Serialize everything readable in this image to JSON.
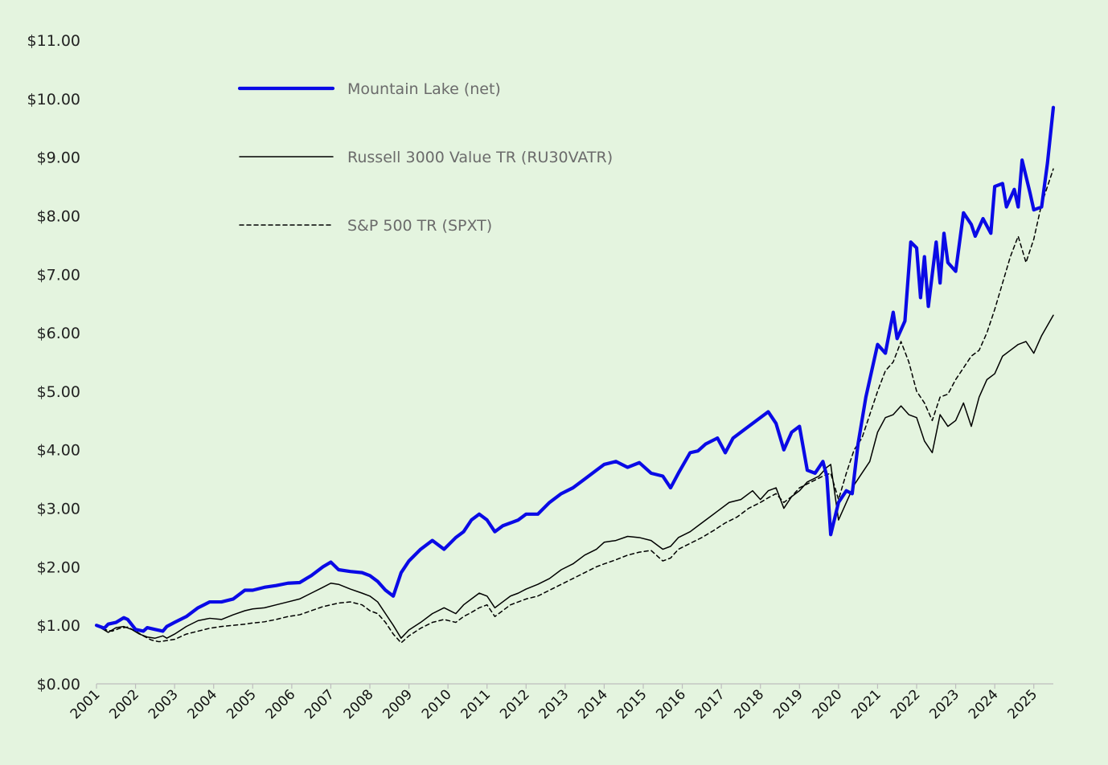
{
  "chart_data": {
    "type": "line",
    "title": "",
    "xlabel": "",
    "ylabel": "",
    "xlim": [
      2001.0,
      2025.5
    ],
    "ylim": [
      0,
      11
    ],
    "yticks": [
      0,
      1,
      2,
      3,
      4,
      5,
      6,
      7,
      8,
      9,
      10,
      11
    ],
    "ytick_labels": [
      "$0.00",
      "$1.00",
      "$2.00",
      "$3.00",
      "$4.00",
      "$5.00",
      "$6.00",
      "$7.00",
      "$8.00",
      "$9.00",
      "$10.00",
      "$11.00"
    ],
    "xticks": [
      2001,
      2002,
      2003,
      2004,
      2005,
      2006,
      2007,
      2008,
      2009,
      2010,
      2011,
      2012,
      2013,
      2014,
      2015,
      2016,
      2017,
      2018,
      2019,
      2020,
      2021,
      2022,
      2023,
      2024,
      2025
    ],
    "xtick_labels": [
      "2001",
      "2002",
      "2003",
      "2004",
      "2005",
      "2006",
      "2007",
      "2008",
      "2009",
      "2010",
      "2011",
      "2012",
      "2013",
      "2014",
      "2015",
      "2016",
      "2017",
      "2018",
      "2019",
      "2020",
      "2021",
      "2022",
      "2023",
      "2024",
      "2025"
    ],
    "grid": false,
    "legend_position": "top-left",
    "series": [
      {
        "name": "Mountain Lake (net)",
        "color": "#0a0ae6",
        "style": "solid-thick",
        "x": [
          2001.0,
          2001.2,
          2001.3,
          2001.5,
          2001.7,
          2001.8,
          2002.0,
          2002.2,
          2002.3,
          2002.5,
          2002.7,
          2002.8,
          2003.0,
          2003.3,
          2003.6,
          2003.9,
          2004.2,
          2004.5,
          2004.8,
          2005.0,
          2005.3,
          2005.6,
          2005.9,
          2006.2,
          2006.5,
          2006.8,
          2007.0,
          2007.2,
          2007.5,
          2007.8,
          2008.0,
          2008.2,
          2008.4,
          2008.6,
          2008.8,
          2009.0,
          2009.3,
          2009.6,
          2009.9,
          2010.2,
          2010.4,
          2010.6,
          2010.8,
          2011.0,
          2011.2,
          2011.4,
          2011.6,
          2011.8,
          2012.0,
          2012.3,
          2012.6,
          2012.9,
          2013.2,
          2013.5,
          2013.8,
          2014.0,
          2014.3,
          2014.6,
          2014.9,
          2015.2,
          2015.5,
          2015.7,
          2015.9,
          2016.2,
          2016.4,
          2016.6,
          2016.9,
          2017.1,
          2017.3,
          2017.6,
          2017.8,
          2018.0,
          2018.2,
          2018.4,
          2018.6,
          2018.8,
          2019.0,
          2019.2,
          2019.4,
          2019.6,
          2019.7,
          2019.8,
          2020.0,
          2020.2,
          2020.35,
          2020.5,
          2020.7,
          2020.85,
          2021.0,
          2021.2,
          2021.4,
          2021.5,
          2021.7,
          2021.85,
          2022.0,
          2022.1,
          2022.2,
          2022.3,
          2022.5,
          2022.6,
          2022.7,
          2022.8,
          2023.0,
          2023.2,
          2023.4,
          2023.5,
          2023.7,
          2023.9,
          2024.0,
          2024.2,
          2024.3,
          2024.5,
          2024.6,
          2024.7,
          2024.9,
          2025.0,
          2025.2,
          2025.35,
          2025.5
        ],
        "values": [
          1.0,
          0.95,
          1.02,
          1.05,
          1.13,
          1.1,
          0.93,
          0.9,
          0.96,
          0.93,
          0.9,
          0.98,
          1.05,
          1.15,
          1.3,
          1.4,
          1.4,
          1.45,
          1.6,
          1.6,
          1.65,
          1.68,
          1.72,
          1.73,
          1.85,
          2.0,
          2.08,
          1.95,
          1.92,
          1.9,
          1.85,
          1.75,
          1.6,
          1.5,
          1.9,
          2.1,
          2.3,
          2.45,
          2.3,
          2.5,
          2.6,
          2.8,
          2.9,
          2.8,
          2.6,
          2.7,
          2.75,
          2.8,
          2.9,
          2.9,
          3.1,
          3.25,
          3.35,
          3.5,
          3.65,
          3.75,
          3.8,
          3.7,
          3.78,
          3.6,
          3.55,
          3.35,
          3.6,
          3.95,
          3.98,
          4.1,
          4.2,
          3.95,
          4.2,
          4.35,
          4.45,
          4.55,
          4.65,
          4.45,
          4.0,
          4.3,
          4.4,
          3.65,
          3.6,
          3.8,
          3.55,
          2.55,
          3.1,
          3.3,
          3.25,
          4.1,
          4.9,
          5.35,
          5.8,
          5.65,
          6.35,
          5.9,
          6.2,
          7.55,
          7.45,
          6.6,
          7.3,
          6.45,
          7.55,
          6.85,
          7.7,
          7.2,
          7.05,
          8.05,
          7.85,
          7.65,
          7.95,
          7.7,
          8.5,
          8.55,
          8.15,
          8.45,
          8.15,
          8.95,
          8.4,
          8.1,
          8.15,
          8.9,
          9.85
        ]
      },
      {
        "name": "Russell 3000 Value TR (RU30VATR)",
        "color": "#000000",
        "style": "solid-thin",
        "x": [
          2001.0,
          2001.2,
          2001.3,
          2001.5,
          2001.7,
          2001.9,
          2002.1,
          2002.3,
          2002.5,
          2002.7,
          2002.8,
          2003.0,
          2003.3,
          2003.6,
          2003.9,
          2004.2,
          2004.5,
          2004.8,
          2005.0,
          2005.3,
          2005.6,
          2005.9,
          2006.2,
          2006.5,
          2006.8,
          2007.0,
          2007.2,
          2007.5,
          2007.8,
          2008.0,
          2008.2,
          2008.4,
          2008.6,
          2008.8,
          2009.0,
          2009.3,
          2009.6,
          2009.9,
          2010.2,
          2010.4,
          2010.6,
          2010.8,
          2011.0,
          2011.2,
          2011.4,
          2011.6,
          2011.8,
          2012.0,
          2012.3,
          2012.6,
          2012.9,
          2013.2,
          2013.5,
          2013.8,
          2014.0,
          2014.3,
          2014.6,
          2014.9,
          2015.2,
          2015.5,
          2015.7,
          2015.9,
          2016.2,
          2016.4,
          2016.6,
          2016.9,
          2017.2,
          2017.5,
          2017.8,
          2018.0,
          2018.2,
          2018.4,
          2018.6,
          2018.8,
          2019.0,
          2019.2,
          2019.5,
          2019.7,
          2019.8,
          2020.0,
          2020.2,
          2020.4,
          2020.6,
          2020.8,
          2021.0,
          2021.2,
          2021.4,
          2021.6,
          2021.8,
          2022.0,
          2022.2,
          2022.4,
          2022.6,
          2022.8,
          2023.0,
          2023.2,
          2023.4,
          2023.6,
          2023.8,
          2024.0,
          2024.2,
          2024.4,
          2024.6,
          2024.8,
          2025.0,
          2025.2,
          2025.5
        ],
        "values": [
          1.0,
          0.92,
          0.88,
          0.96,
          0.98,
          0.93,
          0.85,
          0.8,
          0.78,
          0.82,
          0.78,
          0.85,
          0.98,
          1.08,
          1.12,
          1.1,
          1.18,
          1.25,
          1.28,
          1.3,
          1.35,
          1.4,
          1.45,
          1.55,
          1.65,
          1.72,
          1.7,
          1.62,
          1.55,
          1.5,
          1.4,
          1.2,
          1.0,
          0.78,
          0.92,
          1.05,
          1.2,
          1.3,
          1.2,
          1.35,
          1.45,
          1.55,
          1.5,
          1.3,
          1.4,
          1.5,
          1.55,
          1.62,
          1.7,
          1.8,
          1.95,
          2.05,
          2.2,
          2.3,
          2.42,
          2.45,
          2.52,
          2.5,
          2.45,
          2.3,
          2.35,
          2.5,
          2.6,
          2.7,
          2.8,
          2.95,
          3.1,
          3.15,
          3.3,
          3.15,
          3.3,
          3.35,
          3.0,
          3.2,
          3.3,
          3.45,
          3.55,
          3.7,
          3.75,
          2.8,
          3.1,
          3.4,
          3.6,
          3.8,
          4.3,
          4.55,
          4.6,
          4.75,
          4.6,
          4.55,
          4.15,
          3.95,
          4.6,
          4.4,
          4.5,
          4.8,
          4.4,
          4.9,
          5.2,
          5.3,
          5.6,
          5.7,
          5.8,
          5.85,
          5.65,
          5.95,
          6.3
        ]
      },
      {
        "name": "S&P 500 TR (SPXT)",
        "color": "#000000",
        "style": "dashed",
        "x": [
          2001.0,
          2001.2,
          2001.4,
          2001.6,
          2001.8,
          2002.0,
          2002.2,
          2002.4,
          2002.6,
          2002.8,
          2003.0,
          2003.3,
          2003.6,
          2003.9,
          2004.2,
          2004.5,
          2004.8,
          2005.0,
          2005.3,
          2005.6,
          2005.9,
          2006.2,
          2006.5,
          2006.8,
          2007.0,
          2007.2,
          2007.5,
          2007.8,
          2008.0,
          2008.2,
          2008.4,
          2008.6,
          2008.8,
          2009.0,
          2009.3,
          2009.6,
          2009.9,
          2010.2,
          2010.4,
          2010.6,
          2010.8,
          2011.0,
          2011.2,
          2011.4,
          2011.6,
          2011.8,
          2012.0,
          2012.3,
          2012.6,
          2012.9,
          2013.2,
          2013.5,
          2013.8,
          2014.0,
          2014.3,
          2014.6,
          2014.9,
          2015.2,
          2015.5,
          2015.7,
          2015.9,
          2016.2,
          2016.5,
          2016.8,
          2017.1,
          2017.4,
          2017.7,
          2018.0,
          2018.2,
          2018.4,
          2018.6,
          2018.8,
          2019.0,
          2019.3,
          2019.6,
          2019.8,
          2020.0,
          2020.2,
          2020.4,
          2020.6,
          2020.8,
          2021.0,
          2021.2,
          2021.4,
          2021.6,
          2021.8,
          2022.0,
          2022.2,
          2022.4,
          2022.6,
          2022.8,
          2023.0,
          2023.2,
          2023.4,
          2023.6,
          2023.8,
          2024.0,
          2024.2,
          2024.4,
          2024.6,
          2024.8,
          2025.0,
          2025.2,
          2025.5
        ],
        "values": [
          1.0,
          0.93,
          0.9,
          0.95,
          0.97,
          0.9,
          0.82,
          0.75,
          0.72,
          0.74,
          0.76,
          0.85,
          0.9,
          0.95,
          0.98,
          1.0,
          1.02,
          1.04,
          1.06,
          1.1,
          1.15,
          1.18,
          1.25,
          1.32,
          1.35,
          1.38,
          1.4,
          1.35,
          1.25,
          1.2,
          1.05,
          0.85,
          0.7,
          0.82,
          0.95,
          1.05,
          1.1,
          1.05,
          1.15,
          1.22,
          1.3,
          1.35,
          1.15,
          1.25,
          1.35,
          1.4,
          1.45,
          1.5,
          1.6,
          1.7,
          1.8,
          1.9,
          2.0,
          2.05,
          2.12,
          2.2,
          2.25,
          2.28,
          2.1,
          2.15,
          2.3,
          2.4,
          2.5,
          2.62,
          2.75,
          2.85,
          3.0,
          3.1,
          3.18,
          3.25,
          3.1,
          3.2,
          3.35,
          3.45,
          3.55,
          3.6,
          3.15,
          3.6,
          4.0,
          4.2,
          4.6,
          5.0,
          5.35,
          5.5,
          5.85,
          5.5,
          5.0,
          4.8,
          4.5,
          4.9,
          4.95,
          5.2,
          5.4,
          5.6,
          5.7,
          6.0,
          6.4,
          6.85,
          7.3,
          7.65,
          7.2,
          7.6,
          8.2,
          8.8
        ]
      }
    ]
  }
}
